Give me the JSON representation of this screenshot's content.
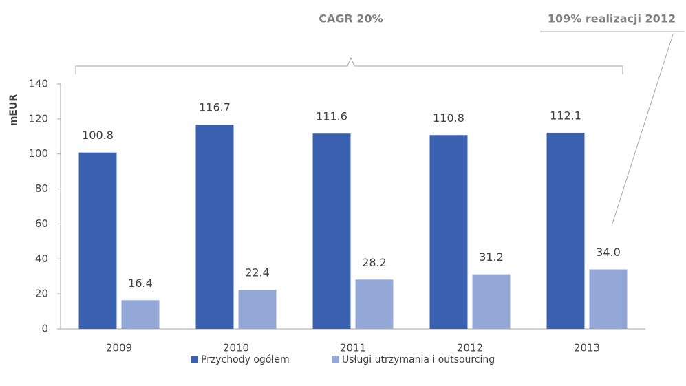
{
  "chart_data": {
    "type": "bar",
    "y_label": "mEUR",
    "categories": [
      "2009",
      "2010",
      "2011",
      "2012",
      "2013"
    ],
    "series": [
      {
        "name": "Przychody ogółem",
        "color": "#3a60b0",
        "values": [
          100.8,
          116.7,
          111.6,
          110.8,
          112.1
        ],
        "value_labels": [
          "100.8",
          "116.7",
          "111.6",
          "110.8",
          "112.1"
        ]
      },
      {
        "name": "Usługi utrzymania i outsourcing",
        "color": "#94a8d8",
        "values": [
          16.4,
          22.4,
          28.2,
          31.2,
          34.0
        ],
        "value_labels": [
          "16.4",
          "22.4",
          "28.2",
          "31.2",
          "34.0"
        ]
      }
    ],
    "ylim": [
      0,
      140
    ],
    "yticks": [
      0,
      20,
      40,
      60,
      80,
      100,
      120,
      140
    ],
    "grid": false,
    "legend": "bottom",
    "annotations": [
      "CAGR 20%",
      "109% realizacji 2012"
    ]
  }
}
